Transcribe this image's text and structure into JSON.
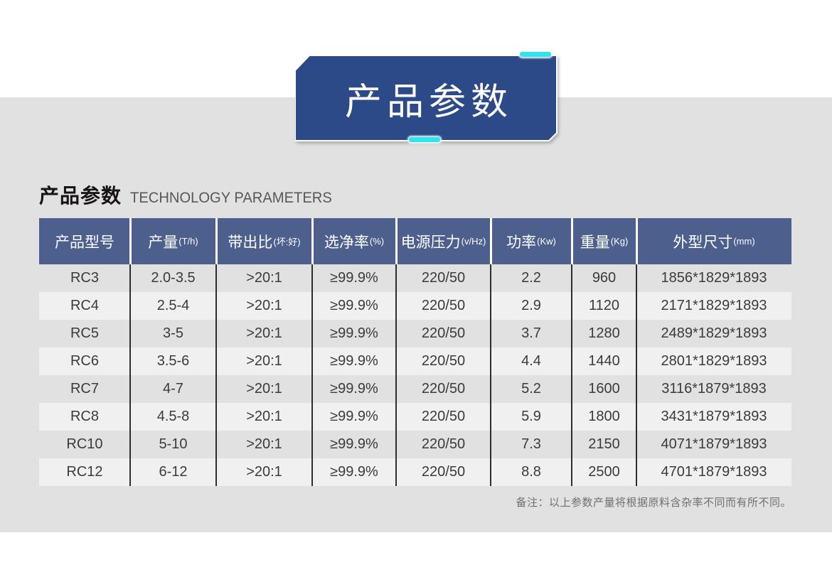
{
  "banner": {
    "title": "产品参数",
    "bg_color": "#2c4a87",
    "accent_color": "#2de4ef"
  },
  "section": {
    "title_zh": "产品参数",
    "title_en": "TECHNOLOGY PARAMETERS"
  },
  "table": {
    "header_bg": "#4d5f8c",
    "columns": [
      {
        "label": "产品型号",
        "unit": ""
      },
      {
        "label": "产量",
        "unit": "(T/h)"
      },
      {
        "label": "带出比",
        "unit": "(坏:好)"
      },
      {
        "label": "选净率",
        "unit": "(%)"
      },
      {
        "label": "电源压力",
        "unit": "(v/Hz)"
      },
      {
        "label": "功率",
        "unit": "(Kw)"
      },
      {
        "label": "重量",
        "unit": "(Kg)"
      },
      {
        "label": "外型尺寸",
        "unit": "(mm)"
      }
    ],
    "rows": [
      [
        "RC3",
        "2.0-3.5",
        ">20:1",
        "≥99.9%",
        "220/50",
        "2.2",
        "960",
        "1856*1829*1893"
      ],
      [
        "RC4",
        "2.5-4",
        ">20:1",
        "≥99.9%",
        "220/50",
        "2.9",
        "1120",
        "2171*1829*1893"
      ],
      [
        "RC5",
        "3-5",
        ">20:1",
        "≥99.9%",
        "220/50",
        "3.7",
        "1280",
        "2489*1829*1893"
      ],
      [
        "RC6",
        "3.5-6",
        ">20:1",
        "≥99.9%",
        "220/50",
        "4.4",
        "1440",
        "2801*1829*1893"
      ],
      [
        "RC7",
        "4-7",
        ">20:1",
        "≥99.9%",
        "220/50",
        "5.2",
        "1600",
        "3116*1879*1893"
      ],
      [
        "RC8",
        "4.5-8",
        ">20:1",
        "≥99.9%",
        "220/50",
        "5.9",
        "1800",
        "3431*1879*1893"
      ],
      [
        "RC10",
        "5-10",
        ">20:1",
        "≥99.9%",
        "220/50",
        "7.3",
        "2150",
        "4071*1879*1893"
      ],
      [
        "RC12",
        "6-12",
        ">20:1",
        "≥99.9%",
        "220/50",
        "8.8",
        "2500",
        "4701*1879*1893"
      ]
    ]
  },
  "note": "备注：以上参数产量将根据原料含杂率不同而有所不同。"
}
